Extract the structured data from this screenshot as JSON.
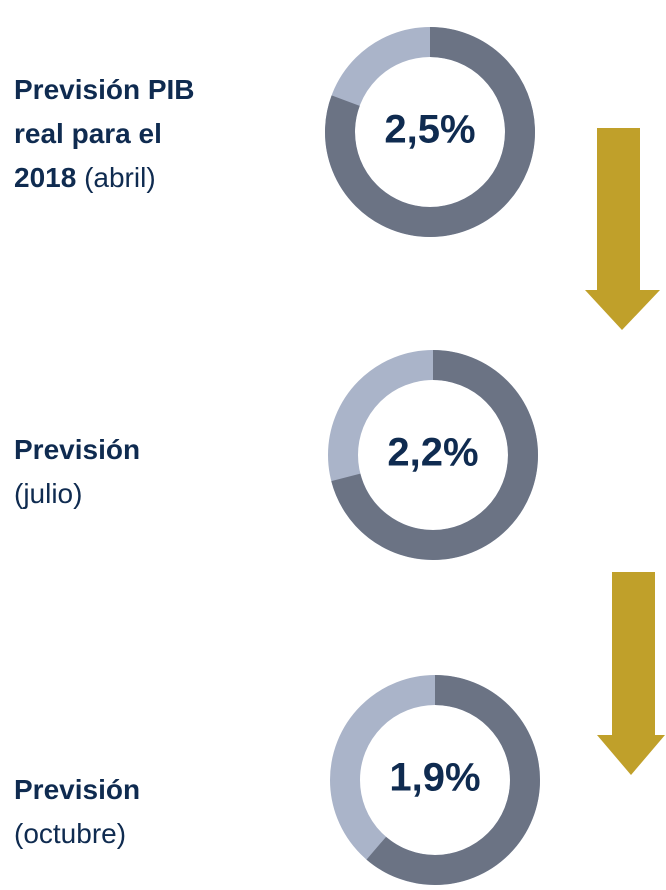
{
  "chart_data": [
    {
      "type": "donut",
      "title": "Previsión PIB real para el 2018",
      "subtitle": "(abril)",
      "values": [
        2.5
      ],
      "value_labels": [
        "2,5%"
      ],
      "ylim": [
        0,
        3.1
      ],
      "color": "#6b7384",
      "rest_color": "#aab4c9"
    },
    {
      "type": "donut",
      "title": "Previsión",
      "subtitle": "(julio)",
      "values": [
        2.2
      ],
      "value_labels": [
        "2,2%"
      ],
      "ylim": [
        0,
        3.1
      ],
      "color": "#6b7384",
      "rest_color": "#aab4c9"
    },
    {
      "type": "donut",
      "title": "Previsión",
      "subtitle": "(octubre)",
      "values": [
        1.9
      ],
      "value_labels": [
        "1,9%"
      ],
      "ylim": [
        0,
        3.1
      ],
      "color": "#6b7384",
      "rest_color": "#aab4c9"
    }
  ]
}
